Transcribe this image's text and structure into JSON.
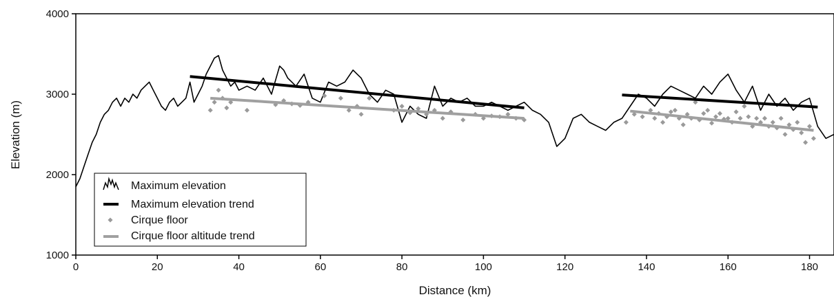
{
  "chart_data": {
    "type": "line",
    "title": "",
    "xlabel": "Distance (km)",
    "ylabel": "Elevation (m)",
    "xlim": [
      0,
      186
    ],
    "ylim": [
      1000,
      4000
    ],
    "xticks": [
      0,
      20,
      40,
      60,
      80,
      100,
      120,
      140,
      160,
      180
    ],
    "yticks": [
      1000,
      2000,
      3000,
      4000
    ],
    "grid": false,
    "legend_position": "bottom-left",
    "colors": {
      "max_elevation": "#000000",
      "max_trend": "#000000",
      "cirque": "#9a9a9a",
      "cirque_trend": "#a0a0a0"
    },
    "series": [
      {
        "name": "Maximum elevation",
        "kind": "line",
        "x": [
          0,
          1,
          2,
          3,
          4,
          5,
          6,
          7,
          8,
          9,
          10,
          11,
          12,
          13,
          14,
          15,
          16,
          17,
          18,
          19,
          20,
          21,
          22,
          23,
          24,
          25,
          26,
          27,
          28,
          29,
          30,
          31,
          32,
          33,
          34,
          35,
          36,
          37,
          38,
          39,
          40,
          42,
          44,
          46,
          48,
          50,
          51,
          52,
          54,
          56,
          58,
          60,
          62,
          64,
          66,
          68,
          69,
          70,
          72,
          74,
          76,
          78,
          80,
          82,
          84,
          86,
          88,
          90,
          92,
          94,
          96,
          98,
          100,
          102,
          104,
          106,
          108,
          110,
          112,
          114,
          116,
          117,
          118,
          119,
          120,
          122,
          124,
          126,
          128,
          130,
          132,
          134,
          136,
          138,
          140,
          142,
          144,
          146,
          148,
          150,
          152,
          154,
          156,
          158,
          160,
          162,
          164,
          166,
          168,
          170,
          172,
          174,
          176,
          178,
          180,
          182,
          184,
          186
        ],
        "y": [
          1850,
          1950,
          2100,
          2250,
          2400,
          2500,
          2650,
          2750,
          2800,
          2900,
          2950,
          2850,
          2950,
          2900,
          3000,
          2950,
          3050,
          3100,
          3150,
          3050,
          2950,
          2850,
          2800,
          2900,
          2950,
          2850,
          2900,
          2950,
          3150,
          2900,
          3000,
          3100,
          3250,
          3350,
          3450,
          3480,
          3300,
          3200,
          3100,
          3150,
          3050,
          3100,
          3050,
          3200,
          3000,
          3350,
          3300,
          3200,
          3100,
          3250,
          2950,
          2900,
          3150,
          3100,
          3150,
          3300,
          3250,
          3200,
          3000,
          2900,
          3050,
          3000,
          2650,
          2850,
          2750,
          2700,
          3100,
          2850,
          2950,
          2900,
          2950,
          2850,
          2850,
          2900,
          2850,
          2800,
          2850,
          2900,
          2800,
          2750,
          2650,
          2500,
          2350,
          2400,
          2450,
          2700,
          2750,
          2650,
          2600,
          2550,
          2650,
          2700,
          2850,
          3000,
          2950,
          2850,
          3000,
          3100,
          3050,
          3000,
          2950,
          3100,
          3000,
          3150,
          3250,
          3050,
          2900,
          3100,
          2800,
          3000,
          2850,
          2950,
          2800,
          2900,
          2950,
          2600,
          2450,
          2500
        ]
      },
      {
        "name": "Maximum elevation trend",
        "kind": "segments",
        "segments": [
          {
            "x": [
              28,
              110
            ],
            "y": [
              3220,
              2830
            ]
          },
          {
            "x": [
              134,
              182
            ],
            "y": [
              2990,
              2840
            ]
          }
        ]
      },
      {
        "name": "Cirque floor",
        "kind": "scatter",
        "x": [
          33,
          34,
          35,
          36,
          37,
          38,
          42,
          49,
          51,
          53,
          55,
          57,
          61,
          65,
          67,
          69,
          70,
          72,
          78,
          80,
          82,
          84,
          86,
          88,
          90,
          92,
          95,
          98,
          100,
          102,
          104,
          106,
          108,
          110,
          135,
          137,
          139,
          141,
          142,
          143,
          144,
          145,
          146,
          147,
          148,
          149,
          150,
          151,
          152,
          153,
          154,
          155,
          156,
          157,
          158,
          159,
          160,
          161,
          162,
          163,
          164,
          165,
          166,
          167,
          168,
          169,
          170,
          171,
          172,
          173,
          174,
          175,
          176,
          177,
          178,
          179,
          180,
          181
        ],
        "y": [
          2800,
          2900,
          3050,
          2950,
          2830,
          2900,
          2800,
          2870,
          2920,
          2880,
          2860,
          2900,
          2980,
          2950,
          2800,
          2850,
          2750,
          2950,
          2800,
          2850,
          2770,
          2820,
          2750,
          2800,
          2700,
          2780,
          2680,
          2750,
          2700,
          2730,
          2720,
          2750,
          2700,
          2680,
          2650,
          2750,
          2720,
          2800,
          2700,
          2760,
          2650,
          2720,
          2780,
          2800,
          2700,
          2620,
          2750,
          2700,
          2900,
          2680,
          2760,
          2800,
          2640,
          2720,
          2760,
          2690,
          2700,
          2650,
          2780,
          2700,
          2850,
          2720,
          2600,
          2700,
          2650,
          2700,
          2600,
          2650,
          2580,
          2700,
          2500,
          2620,
          2560,
          2650,
          2520,
          2400,
          2600,
          2450
        ]
      },
      {
        "name": "Cirque floor altitude trend",
        "kind": "segments",
        "segments": [
          {
            "x": [
              33,
              110
            ],
            "y": [
              2950,
              2700
            ]
          },
          {
            "x": [
              136,
              181
            ],
            "y": [
              2790,
              2550
            ]
          }
        ]
      }
    ]
  }
}
